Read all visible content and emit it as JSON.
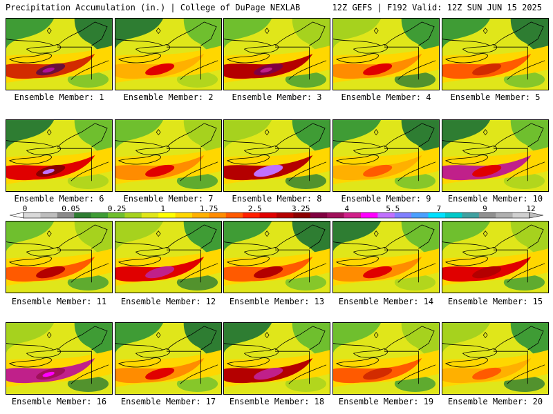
{
  "header": {
    "left_title": "Precipitation Accumulation (in.) | College of DuPage NEXLAB",
    "right_title": "12Z GEFS | F192 Valid: 12Z SUN JUN 15 2025"
  },
  "panels": [
    {
      "label": "Ensemble Member: 1"
    },
    {
      "label": "Ensemble Member: 2"
    },
    {
      "label": "Ensemble Member: 3"
    },
    {
      "label": "Ensemble Member: 4"
    },
    {
      "label": "Ensemble Member: 5"
    },
    {
      "label": "Ensemble Member: 6"
    },
    {
      "label": "Ensemble Member: 7"
    },
    {
      "label": "Ensemble Member: 8"
    },
    {
      "label": "Ensemble Member: 9"
    },
    {
      "label": "Ensemble Member: 10"
    },
    {
      "label": "Ensemble Member: 11"
    },
    {
      "label": "Ensemble Member: 12"
    },
    {
      "label": "Ensemble Member: 13"
    },
    {
      "label": "Ensemble Member: 14"
    },
    {
      "label": "Ensemble Member: 15"
    },
    {
      "label": "Ensemble Member: 16"
    },
    {
      "label": "Ensemble Member: 17"
    },
    {
      "label": "Ensemble Member: 18"
    },
    {
      "label": "Ensemble Member: 19"
    },
    {
      "label": "Ensemble Member: 20"
    }
  ],
  "colorbar": {
    "tick_labels": [
      "0",
      "0.05",
      "0.25",
      "1",
      "1.75",
      "2.5",
      "3.25",
      "4",
      "5.5",
      "7",
      "9",
      "12"
    ],
    "colors": [
      "#d9d9d9",
      "#bdbdbd",
      "#8a8a8a",
      "#2e7d32",
      "#3f9c35",
      "#6fbf2e",
      "#a6d21e",
      "#e0e61a",
      "#ffff00",
      "#ffd700",
      "#ffb000",
      "#ff8c00",
      "#ff5a00",
      "#ff2000",
      "#e00000",
      "#b40000",
      "#8b0000",
      "#800040",
      "#a0105a",
      "#d0208a",
      "#ff00ff",
      "#c070ff",
      "#8080ff",
      "#4aa0ff",
      "#00e0ff",
      "#00c8c8",
      "#40a0a0",
      "#909090",
      "#b0b0b0",
      "#d0d0d0"
    ]
  }
}
